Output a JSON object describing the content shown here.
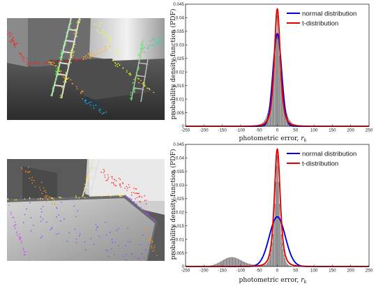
{
  "panels": [
    {
      "scene": {
        "kind": "warehouse-ladders",
        "point_colors": [
          "#ff2020",
          "#ffb020",
          "#f0ff20",
          "#40ff40",
          "#20e0a0",
          "#20c0ff"
        ]
      }
    },
    {
      "scene": {
        "kind": "table-close-up",
        "point_colors": [
          "#ff3030",
          "#ff9020",
          "#a040ff",
          "#e040ff",
          "#4060ff",
          "#ffe040"
        ]
      }
    }
  ],
  "chart_data": [
    {
      "type": "bar",
      "title": "",
      "xlabel": "photometric error, ",
      "xlabel_sym": "r",
      "xlabel_sub": "k",
      "ylabel": "probability density function (PDF)",
      "xlim": [
        -250,
        250
      ],
      "ylim": [
        0,
        0.045
      ],
      "xticks": [
        "-250",
        "-200",
        "-150",
        "-100",
        "-50",
        "0",
        "50",
        "100",
        "150",
        "200",
        "250"
      ],
      "yticks": [
        "0",
        "0.005",
        "0.01",
        "0.015",
        "0.02",
        "0.025",
        "0.03",
        "0.035",
        "0.04",
        "0.045"
      ],
      "legend_position": "top-right",
      "histogram": {
        "color": "#808080",
        "bin_width": 2.5,
        "components": [
          {
            "mean": 0,
            "sd": 6,
            "weight": 0.28
          },
          {
            "mean": 0,
            "sd": 16,
            "weight": 0.62
          },
          {
            "mean": 0,
            "sd": 45,
            "weight": 0.1
          }
        ],
        "peak": {
          "x": 0,
          "y": 0.041
        }
      },
      "series": [
        {
          "name": "normal distribution",
          "color": "#0000e6",
          "dist": "normal",
          "mu": 0,
          "sigma": 11.7
        },
        {
          "name": "t-distribution",
          "color": "#e60000",
          "dist": "t",
          "mu": 0,
          "sigma": 8.5,
          "nu": 3
        }
      ]
    },
    {
      "type": "bar",
      "title": "",
      "xlabel": "photometric error, ",
      "xlabel_sym": "r",
      "xlabel_sub": "k",
      "ylabel": "probability density function (PDF)",
      "xlim": [
        -250,
        250
      ],
      "ylim": [
        0,
        0.045
      ],
      "xticks": [
        "-250",
        "-200",
        "-150",
        "-100",
        "-50",
        "0",
        "50",
        "100",
        "150",
        "200",
        "250"
      ],
      "yticks": [
        "0",
        "0.005",
        "0.01",
        "0.015",
        "0.02",
        "0.025",
        "0.03",
        "0.035",
        "0.04",
        "0.045"
      ],
      "legend_position": "top-right",
      "histogram": {
        "color": "#808080",
        "bin_width": 2.5,
        "components": [
          {
            "mean": 0,
            "sd": 4.5,
            "weight": 0.22
          },
          {
            "mean": 0,
            "sd": 11,
            "weight": 0.5
          },
          {
            "mean": -125,
            "sd": 26,
            "weight": 0.21
          },
          {
            "mean": -55,
            "sd": 60,
            "weight": 0.07
          }
        ],
        "peak": {
          "x": 0,
          "y": 0.041
        }
      },
      "series": [
        {
          "name": "normal distribution",
          "color": "#0000e6",
          "dist": "normal",
          "mu": 0,
          "sigma": 21.8
        },
        {
          "name": "t-distribution",
          "color": "#e60000",
          "dist": "t",
          "mu": 0,
          "sigma": 8.5,
          "nu": 3
        }
      ]
    }
  ]
}
